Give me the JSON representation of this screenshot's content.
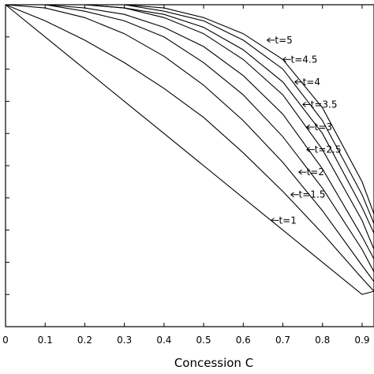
{
  "chart_data": {
    "type": "line",
    "title": "",
    "xlabel": "Concession C",
    "ylabel": "",
    "xlim": [
      0,
      0.93
    ],
    "ylim": [
      0,
      1.0
    ],
    "grid": false,
    "legend": "none",
    "x_ticks": [
      0,
      0.1,
      0.2,
      0.3,
      0.4,
      0.5,
      0.6,
      0.7,
      0.8,
      0.9
    ],
    "x_tick_labels": [
      "0",
      "0.1",
      "0.2",
      "0.3",
      "0.4",
      "0.5",
      "0.6",
      "0.7",
      "0.8",
      "0.9"
    ],
    "y_ticks": [
      0,
      0.1,
      0.2,
      0.3,
      0.4,
      0.5,
      0.6,
      0.7,
      0.8,
      0.9,
      1.0
    ],
    "x": [
      0,
      0.1,
      0.2,
      0.3,
      0.4,
      0.5,
      0.6,
      0.7,
      0.8,
      0.9,
      0.93
    ],
    "series": [
      {
        "label": "t=1",
        "label_at": [
          0.67,
          0.33
        ],
        "values": [
          1.0,
          0.9,
          0.8,
          0.7,
          0.6,
          0.5,
          0.4,
          0.3,
          0.2,
          0.1,
          0.11
        ]
      },
      {
        "label": "t=1.5",
        "label_at": [
          0.72,
          0.41
        ],
        "values": [
          1.0,
          0.95,
          0.89,
          0.82,
          0.74,
          0.65,
          0.54,
          0.42,
          0.29,
          0.15,
          0.11
        ]
      },
      {
        "label": "t=2",
        "label_at": [
          0.74,
          0.48
        ],
        "values": [
          1.0,
          0.99,
          0.96,
          0.91,
          0.84,
          0.75,
          0.64,
          0.51,
          0.36,
          0.19,
          0.14
        ]
      },
      {
        "label": "t=2.5",
        "label_at": [
          0.76,
          0.55
        ],
        "values": [
          1.0,
          1.0,
          0.98,
          0.95,
          0.9,
          0.82,
          0.72,
          0.59,
          0.43,
          0.24,
          0.17
        ]
      },
      {
        "label": "t=3",
        "label_at": [
          0.76,
          0.62
        ],
        "values": [
          1.0,
          1.0,
          0.99,
          0.97,
          0.93,
          0.87,
          0.78,
          0.66,
          0.49,
          0.28,
          0.21
        ]
      },
      {
        "label": "t=3.5",
        "label_at": [
          0.75,
          0.69
        ],
        "values": [
          1.0,
          1.0,
          1.0,
          0.99,
          0.96,
          0.91,
          0.83,
          0.72,
          0.55,
          0.33,
          0.24
        ]
      },
      {
        "label": "t=4",
        "label_at": [
          0.73,
          0.76
        ],
        "values": [
          1.0,
          1.0,
          1.0,
          0.99,
          0.97,
          0.93,
          0.86,
          0.76,
          0.6,
          0.37,
          0.29
        ]
      },
      {
        "label": "t=4.5",
        "label_at": [
          0.7,
          0.83
        ],
        "values": [
          1.0,
          1.0,
          1.0,
          1.0,
          0.98,
          0.95,
          0.89,
          0.8,
          0.64,
          0.41,
          0.32
        ]
      },
      {
        "label": "t=5",
        "label_at": [
          0.66,
          0.89
        ],
        "values": [
          1.0,
          1.0,
          1.0,
          1.0,
          0.99,
          0.96,
          0.91,
          0.83,
          0.68,
          0.45,
          0.35
        ]
      }
    ]
  }
}
